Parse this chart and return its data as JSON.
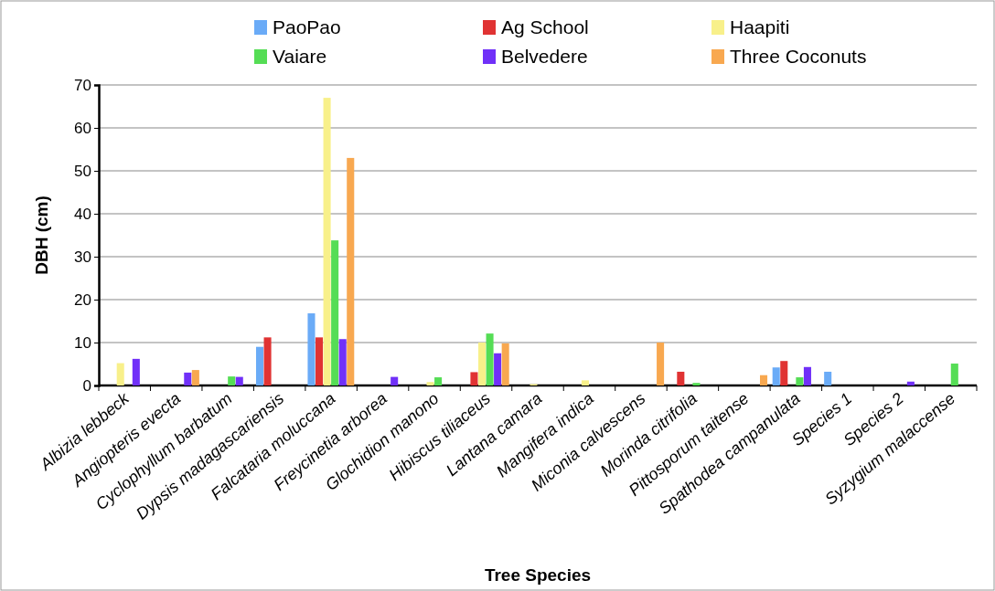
{
  "chart_data": {
    "type": "bar",
    "xlabel": "Tree Species",
    "ylabel": "DBH (cm)",
    "categories": [
      "Albizia lebbeck",
      "Angiopteris evecta",
      "Cyclophyllum barbatum",
      "Dypsis madagascariensis",
      "Falcataria moluccana",
      "Freycinetia arborea",
      "Glochidion manono",
      "Hibiscus tiliaceus",
      "Lantana camara",
      "Mangifera indica",
      "Miconia calvescens",
      "Morinda citrifolia",
      "Pittosporum taitense",
      "Spathodea campanulata",
      "Species 1",
      "Species 2",
      "Syzygium malaccense"
    ],
    "series": [
      {
        "name": "PaoPao",
        "color": "#6aabf7",
        "values": [
          0,
          0,
          0,
          9,
          16.8,
          0,
          0,
          0,
          0,
          0,
          0,
          0,
          0,
          4.2,
          3.2,
          0,
          0
        ]
      },
      {
        "name": "Ag School",
        "color": "#e03333",
        "values": [
          0,
          0,
          0,
          11.2,
          11.2,
          0,
          0,
          3.1,
          0,
          0,
          0,
          3.2,
          0,
          5.7,
          0,
          0,
          0
        ]
      },
      {
        "name": "Haapiti",
        "color": "#f8f08a",
        "values": [
          5.2,
          0,
          0,
          0,
          67,
          0,
          0.8,
          10,
          0.3,
          1.2,
          0,
          0,
          0,
          0,
          0,
          0,
          0
        ]
      },
      {
        "name": "Vaiare",
        "color": "#55dd55",
        "values": [
          0,
          0,
          2.1,
          0,
          33.8,
          0,
          1.9,
          12.1,
          0,
          0,
          0,
          0.6,
          0,
          1.9,
          0,
          0,
          5.1
        ]
      },
      {
        "name": "Belvedere",
        "color": "#7030f8",
        "values": [
          6.2,
          3,
          2,
          0,
          10.8,
          2,
          0,
          7.5,
          0,
          0,
          0,
          0,
          0,
          4.3,
          0,
          0.9,
          0
        ]
      },
      {
        "name": "Three Coconuts",
        "color": "#f8a850",
        "values": [
          0,
          3.6,
          0,
          0,
          53,
          0,
          0,
          9.8,
          0,
          0,
          10,
          0,
          2.4,
          0,
          0,
          0,
          0
        ]
      }
    ],
    "ylim": [
      0,
      70
    ],
    "yticks": [
      0,
      10,
      20,
      30,
      40,
      50,
      60,
      70
    ],
    "grid": "y",
    "legend": "top"
  }
}
